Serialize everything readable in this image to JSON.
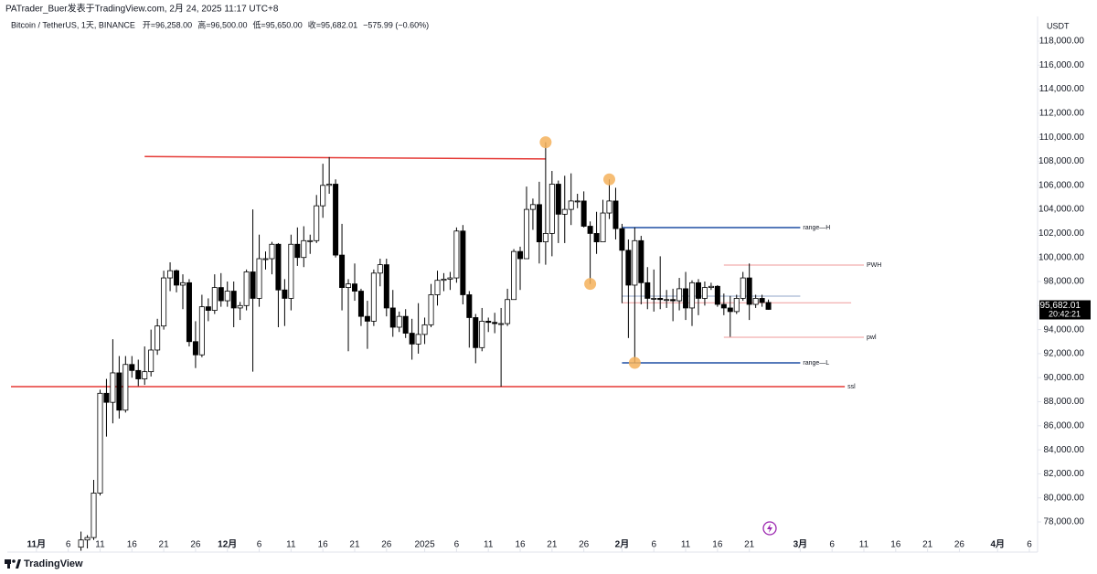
{
  "header": {
    "publisher": "PATrader_Buer发表于TradingView.com, 2月 24, 2025 11:17 UTC+8",
    "symbol": "Bitcoin / TetherUS, 1天, BINANCE",
    "ohlc": [
      "开=96,258.00",
      "高=96,500.00",
      "低=95,650.00",
      "收=95,682.01",
      "−575.99 (−0.60%)"
    ],
    "currency": "USDT"
  },
  "footer": {
    "brand": "TradingView"
  },
  "chart_data": {
    "type": "candlestick",
    "up_color": "#ffffff",
    "down_color": "#000000",
    "wick_color": "#000000",
    "grid": false,
    "x": [
      "2024-11-08",
      "2024-11-09",
      "2024-11-10",
      "2024-11-11",
      "2024-11-12",
      "2024-11-13",
      "2024-11-14",
      "2024-11-15",
      "2024-11-16",
      "2024-11-17",
      "2024-11-18",
      "2024-11-19",
      "2024-11-20",
      "2024-11-21",
      "2024-11-22",
      "2024-11-23",
      "2024-11-24",
      "2024-11-25",
      "2024-11-26",
      "2024-11-27",
      "2024-11-28",
      "2024-11-29",
      "2024-11-30",
      "2024-12-01",
      "2024-12-02",
      "2024-12-03",
      "2024-12-04",
      "2024-12-05",
      "2024-12-06",
      "2024-12-07",
      "2024-12-08",
      "2024-12-09",
      "2024-12-10",
      "2024-12-11",
      "2024-12-12",
      "2024-12-13",
      "2024-12-14",
      "2024-12-15",
      "2024-12-16",
      "2024-12-17",
      "2024-12-18",
      "2024-12-19",
      "2024-12-20",
      "2024-12-21",
      "2024-12-22",
      "2024-12-23",
      "2024-12-24",
      "2024-12-25",
      "2024-12-26",
      "2024-12-27",
      "2024-12-28",
      "2024-12-29",
      "2024-12-30",
      "2024-12-31",
      "2025-01-01",
      "2025-01-02",
      "2025-01-03",
      "2025-01-04",
      "2025-01-05",
      "2025-01-06",
      "2025-01-07",
      "2025-01-08",
      "2025-01-09",
      "2025-01-10",
      "2025-01-11",
      "2025-01-12",
      "2025-01-13",
      "2025-01-14",
      "2025-01-15",
      "2025-01-16",
      "2025-01-17",
      "2025-01-18",
      "2025-01-19",
      "2025-01-20",
      "2025-01-21",
      "2025-01-22",
      "2025-01-23",
      "2025-01-24",
      "2025-01-25",
      "2025-01-26",
      "2025-01-27",
      "2025-01-28",
      "2025-01-29",
      "2025-01-30",
      "2025-01-31",
      "2025-02-01",
      "2025-02-02",
      "2025-02-03",
      "2025-02-04",
      "2025-02-05",
      "2025-02-06",
      "2025-02-07",
      "2025-02-08",
      "2025-02-09",
      "2025-02-10",
      "2025-02-11",
      "2025-02-12",
      "2025-02-13",
      "2025-02-14",
      "2025-02-15",
      "2025-02-16",
      "2025-02-17",
      "2025-02-18",
      "2025-02-19",
      "2025-02-20",
      "2025-02-21",
      "2025-02-22",
      "2025-02-23",
      "2025-02-24"
    ],
    "open": [
      75900,
      76500,
      76700,
      80400,
      88700,
      87950,
      90400,
      87300,
      91100,
      90600,
      89900,
      90500,
      92300,
      94300,
      98300,
      98900,
      97700,
      97900,
      93000,
      91900,
      95900,
      95600,
      97500,
      96400,
      97200,
      95800,
      96000,
      98800,
      96600,
      99900,
      99900,
      101100,
      97300,
      96600,
      101100,
      100000,
      101400,
      101400,
      104300,
      106000,
      106100,
      100200,
      97500,
      97800,
      97200,
      95100,
      94700,
      98700,
      99400,
      95800,
      94200,
      95100,
      93700,
      92800,
      93600,
      94400,
      96900,
      98100,
      98200,
      98300,
      102200,
      96900,
      95000,
      92500,
      94700,
      94600,
      94500,
      94500,
      96500,
      100500,
      99900,
      104000,
      104400,
      101300,
      102000,
      106100,
      103600,
      104000,
      104700,
      104700,
      102600,
      102000,
      101300,
      103700,
      104700,
      102400,
      100600,
      97700,
      101400,
      97900,
      96600,
      96600,
      96500,
      96500,
      96400,
      97400,
      95800,
      97900,
      96600,
      97500,
      97600,
      96100,
      95800,
      95500,
      96600,
      98300,
      96100,
      96600,
      96258
    ],
    "high": [
      77200,
      76900,
      81500,
      89000,
      89900,
      93200,
      91800,
      91800,
      91800,
      91500,
      92600,
      94000,
      94900,
      98900,
      99600,
      99000,
      98600,
      98200,
      94700,
      96900,
      96600,
      98600,
      98700,
      98000,
      98000,
      96300,
      99000,
      104000,
      101900,
      100500,
      101300,
      101200,
      98200,
      101900,
      102500,
      102600,
      101900,
      105200,
      107800,
      108353,
      106500,
      102800,
      98200,
      99500,
      97400,
      96400,
      99000,
      99900,
      99900,
      97300,
      95500,
      95700,
      94900,
      96200,
      95000,
      97800,
      98900,
      98700,
      98800,
      102500,
      102700,
      97200,
      95300,
      95800,
      95000,
      95400,
      95800,
      97400,
      100700,
      100900,
      105900,
      104900,
      106300,
      109588,
      107200,
      106400,
      106800,
      107000,
      105300,
      105500,
      103000,
      103800,
      104800,
      106500,
      105800,
      102800,
      101500,
      102500,
      101800,
      99200,
      99000,
      100100,
      97300,
      97400,
      98300,
      98800,
      98100,
      98200,
      98000,
      97900,
      97700,
      97000,
      96800,
      96900,
      98800,
      99500,
      96900,
      96900,
      96500
    ],
    "low": [
      75600,
      75800,
      76500,
      80200,
      85100,
      86200,
      86600,
      87100,
      90000,
      89300,
      89400,
      90100,
      91900,
      94000,
      97200,
      97100,
      95700,
      92600,
      90800,
      91700,
      94700,
      95300,
      95900,
      95900,
      94200,
      94800,
      95600,
      90500,
      95900,
      99000,
      98600,
      94200,
      94300,
      95600,
      99300,
      99200,
      100300,
      101200,
      103300,
      105300,
      100000,
      95600,
      92200,
      96400,
      94300,
      92400,
      94300,
      97600,
      95100,
      93400,
      93800,
      93300,
      91500,
      92000,
      92800,
      94200,
      96000,
      97200,
      97300,
      97900,
      96100,
      92500,
      91200,
      92200,
      93800,
      93700,
      89256,
      94300,
      96500,
      97300,
      99900,
      102300,
      99500,
      99400,
      100100,
      101200,
      101200,
      102700,
      104100,
      102500,
      97800,
      100300,
      101300,
      103200,
      101500,
      96200,
      93300,
      91231,
      96100,
      95700,
      95500,
      95700,
      95800,
      94700,
      95600,
      94800,
      94300,
      95200,
      96000,
      97300,
      95900,
      95200,
      93400,
      95300,
      96400,
      94800,
      95800,
      95900,
      95650
    ],
    "close": [
      76500,
      76700,
      80400,
      88700,
      87950,
      90400,
      87300,
      91100,
      90600,
      89900,
      90500,
      92300,
      94300,
      98300,
      98900,
      97700,
      97900,
      93000,
      91900,
      95900,
      95600,
      97500,
      96400,
      97200,
      95800,
      96000,
      98800,
      96600,
      99900,
      99900,
      101100,
      97300,
      96600,
      101100,
      100000,
      101400,
      101400,
      104300,
      106000,
      106100,
      100200,
      97500,
      97800,
      97200,
      95100,
      94700,
      98700,
      99400,
      95800,
      94200,
      95100,
      93700,
      92800,
      93600,
      94400,
      96900,
      98100,
      98200,
      98300,
      102200,
      96900,
      95000,
      92500,
      94700,
      94600,
      94500,
      94500,
      96500,
      100500,
      99900,
      104000,
      104400,
      101300,
      102000,
      106100,
      103600,
      104000,
      104700,
      104700,
      102600,
      102000,
      101300,
      103700,
      104700,
      102400,
      100600,
      97700,
      101400,
      97900,
      96600,
      96600,
      96500,
      96500,
      96400,
      97400,
      95800,
      97900,
      96600,
      97500,
      97600,
      96100,
      95800,
      95500,
      96600,
      98300,
      96100,
      96600,
      96258,
      95682
    ],
    "xlim": [
      "2024-10-28",
      "2025-04-07"
    ],
    "xticks": [
      {
        "value": "2024-11-01",
        "label": "11月"
      },
      {
        "value": "2024-11-06",
        "label": "6"
      },
      {
        "value": "2024-11-11",
        "label": "11"
      },
      {
        "value": "2024-11-16",
        "label": "16"
      },
      {
        "value": "2024-11-21",
        "label": "21"
      },
      {
        "value": "2024-11-26",
        "label": "26"
      },
      {
        "value": "2024-12-01",
        "label": "12月"
      },
      {
        "value": "2024-12-06",
        "label": "6"
      },
      {
        "value": "2024-12-11",
        "label": "11"
      },
      {
        "value": "2024-12-16",
        "label": "16"
      },
      {
        "value": "2024-12-21",
        "label": "21"
      },
      {
        "value": "2024-12-26",
        "label": "26"
      },
      {
        "value": "2025-01-01",
        "label": "2025"
      },
      {
        "value": "2025-01-06",
        "label": "6"
      },
      {
        "value": "2025-01-11",
        "label": "11"
      },
      {
        "value": "2025-01-16",
        "label": "16"
      },
      {
        "value": "2025-01-21",
        "label": "21"
      },
      {
        "value": "2025-01-26",
        "label": "26"
      },
      {
        "value": "2025-02-01",
        "label": "2月"
      },
      {
        "value": "2025-02-06",
        "label": "6"
      },
      {
        "value": "2025-02-11",
        "label": "11"
      },
      {
        "value": "2025-02-16",
        "label": "16"
      },
      {
        "value": "2025-02-21",
        "label": "21"
      },
      {
        "value": "2025-03-01",
        "label": "3月"
      },
      {
        "value": "2025-03-06",
        "label": "6"
      },
      {
        "value": "2025-03-11",
        "label": "11"
      },
      {
        "value": "2025-03-16",
        "label": "16"
      },
      {
        "value": "2025-03-21",
        "label": "21"
      },
      {
        "value": "2025-03-26",
        "label": "26"
      },
      {
        "value": "2025-04-01",
        "label": "4月"
      },
      {
        "value": "2025-04-06",
        "label": "6"
      }
    ],
    "ylim": [
      77090,
      118760
    ],
    "yticks": [
      {
        "value": 78000,
        "label": "78,000.00"
      },
      {
        "value": 80000,
        "label": "80,000.00"
      },
      {
        "value": 82000,
        "label": "82,000.00"
      },
      {
        "value": 84000,
        "label": "84,000.00"
      },
      {
        "value": 86000,
        "label": "86,000.00"
      },
      {
        "value": 88000,
        "label": "88,000.00"
      },
      {
        "value": 90000,
        "label": "90,000.00"
      },
      {
        "value": 92000,
        "label": "92,000.00"
      },
      {
        "value": 94000,
        "label": "94,000.00"
      },
      {
        "value": 96000,
        "label": "96,000.00"
      },
      {
        "value": 98000,
        "label": "98,000.00"
      },
      {
        "value": 100000,
        "label": "100,000.00"
      },
      {
        "value": 102000,
        "label": "102,000.00"
      },
      {
        "value": 104000,
        "label": "104,000.00"
      },
      {
        "value": 106000,
        "label": "106,000.00"
      },
      {
        "value": 108000,
        "label": "108,000.00"
      },
      {
        "value": 110000,
        "label": "110,000.00"
      },
      {
        "value": 112000,
        "label": "112,000.00"
      },
      {
        "value": 114000,
        "label": "114,000.00"
      },
      {
        "value": 116000,
        "label": "116,000.00"
      },
      {
        "value": 118000,
        "label": "118,000.00"
      }
    ],
    "lines": [
      {
        "x": [
          "2024-11-18",
          "2025-01-20"
        ],
        "y": [
          108400,
          108200
        ],
        "color": "#e53935"
      },
      {
        "x": [
          "2024-10-28",
          "2025-03-08"
        ],
        "y": [
          89256,
          89256
        ],
        "color": "#e53935",
        "label": "ssl"
      },
      {
        "x": [
          "2025-02-01",
          "2025-03-01"
        ],
        "y": [
          102490,
          102490
        ],
        "color": "#1e4fa3",
        "label": "range—H"
      },
      {
        "x": [
          "2025-02-01",
          "2025-03-01"
        ],
        "y": [
          91231,
          91231
        ],
        "color": "#1e4fa3",
        "label": "range—L"
      },
      {
        "x": [
          "2025-02-17",
          "2025-03-11"
        ],
        "y": [
          99370,
          99370
        ],
        "color": "#ef9a9a",
        "label": "PWH"
      },
      {
        "x": [
          "2025-02-17",
          "2025-03-11"
        ],
        "y": [
          93360,
          93360
        ],
        "color": "#ef9a9a",
        "label": "pwl"
      },
      {
        "x": [
          "2025-02-01",
          "2025-03-01"
        ],
        "y": [
          96780,
          96780
        ],
        "color": "#90a4c8"
      },
      {
        "x": [
          "2025-02-01",
          "2025-03-09"
        ],
        "y": [
          96230,
          96230
        ],
        "color": "#ef9a9a"
      }
    ],
    "markers": [
      {
        "x": "2025-01-20",
        "y": 109588
      },
      {
        "x": "2025-01-30",
        "y": 106500
      },
      {
        "x": "2025-01-27",
        "y": 97800
      },
      {
        "x": "2025-02-03",
        "y": 91231
      }
    ],
    "marker_color": "#f5b15c",
    "last_price": {
      "value": 95682.01,
      "label": "95,682.01"
    },
    "countdown": "20:42:21"
  }
}
